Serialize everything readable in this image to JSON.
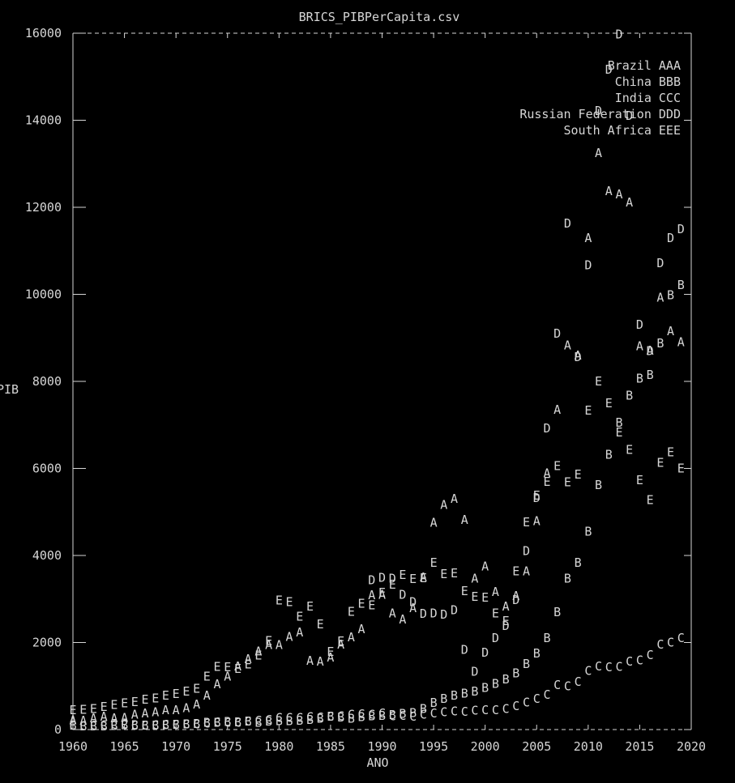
{
  "chart_data": {
    "type": "line",
    "title": "BRICS_PIBPerCapita.csv",
    "xlabel": "ANO",
    "ylabel": "PIB",
    "xlim": [
      1960,
      2020
    ],
    "ylim": [
      0,
      16000
    ],
    "x_ticks": [
      "1960",
      "1965",
      "1970",
      "1975",
      "1980",
      "1985",
      "1990",
      "1995",
      "2000",
      "2005",
      "2010",
      "2015",
      "2020"
    ],
    "y_ticks": [
      "0",
      "2000",
      "4000",
      "6000",
      "8000",
      "10000",
      "12000",
      "14000",
      "16000"
    ],
    "legend_position": "top-right",
    "series": [
      {
        "name": "Brazil",
        "marker": "A",
        "x": [
          1960,
          1961,
          1962,
          1963,
          1964,
          1965,
          1966,
          1967,
          1968,
          1969,
          1970,
          1971,
          1972,
          1973,
          1974,
          1975,
          1976,
          1977,
          1978,
          1979,
          1980,
          1981,
          1982,
          1983,
          1984,
          1985,
          1986,
          1987,
          1988,
          1989,
          1990,
          1991,
          1992,
          1993,
          1994,
          1995,
          1996,
          1997,
          1998,
          1999,
          2000,
          2001,
          2002,
          2003,
          2004,
          2005,
          2006,
          2007,
          2008,
          2009,
          2010,
          2011,
          2012,
          2013,
          2014,
          2015,
          2016,
          2017,
          2018,
          2019
        ],
        "values": [
          211,
          209,
          259,
          294,
          262,
          269,
          343,
          371,
          404,
          443,
          442,
          496,
          573,
          780,
          1046,
          1218,
          1455,
          1619,
          1800,
          1940,
          1947,
          2130,
          2230,
          1578,
          1560,
          1657,
          1950,
          2118,
          2306,
          3090,
          3100,
          2670,
          2530,
          2790,
          3500,
          4750,
          5160,
          5300,
          4820,
          3470,
          3750,
          3160,
          2830,
          3070,
          3640,
          4790,
          5890,
          7350,
          8830,
          8600,
          11290,
          13250,
          12370,
          12300,
          12110,
          8810,
          8710,
          9930,
          9150,
          8900
        ]
      },
      {
        "name": "China",
        "marker": "B",
        "x": [
          1960,
          1961,
          1962,
          1963,
          1964,
          1965,
          1966,
          1967,
          1968,
          1969,
          1970,
          1971,
          1972,
          1973,
          1974,
          1975,
          1976,
          1977,
          1978,
          1979,
          1980,
          1981,
          1982,
          1983,
          1984,
          1985,
          1986,
          1987,
          1988,
          1989,
          1990,
          1991,
          1992,
          1993,
          1994,
          1995,
          1996,
          1997,
          1998,
          1999,
          2000,
          2001,
          2002,
          2003,
          2004,
          2005,
          2006,
          2007,
          2008,
          2009,
          2010,
          2011,
          2012,
          2013,
          2014,
          2015,
          2016,
          2017,
          2018,
          2019
        ],
        "values": [
          90,
          76,
          70,
          74,
          85,
          98,
          104,
          97,
          91,
          100,
          113,
          118,
          132,
          157,
          160,
          178,
          165,
          185,
          156,
          184,
          195,
          197,
          203,
          225,
          251,
          294,
          282,
          252,
          284,
          311,
          318,
          333,
          367,
          377,
          473,
          610,
          709,
          782,
          829,
          873,
          959,
          1053,
          1149,
          1289,
          1509,
          1753,
          2099,
          2694,
          3468,
          3832,
          4550,
          5618,
          6317,
          7051,
          7679,
          8067,
          8148,
          8879,
          9977,
          10217
        ]
      },
      {
        "name": "India",
        "marker": "C",
        "x": [
          1960,
          1961,
          1962,
          1963,
          1964,
          1965,
          1966,
          1967,
          1968,
          1969,
          1970,
          1971,
          1972,
          1973,
          1974,
          1975,
          1976,
          1977,
          1978,
          1979,
          1980,
          1981,
          1982,
          1983,
          1984,
          1985,
          1986,
          1987,
          1988,
          1989,
          1990,
          1991,
          1992,
          1993,
          1994,
          1995,
          1996,
          1997,
          1998,
          1999,
          2000,
          2001,
          2002,
          2003,
          2004,
          2005,
          2006,
          2007,
          2008,
          2009,
          2010,
          2011,
          2012,
          2013,
          2014,
          2015,
          2016,
          2017,
          2018,
          2019
        ],
        "values": [
          82,
          85,
          89,
          101,
          115,
          119,
          90,
          96,
          99,
          107,
          112,
          118,
          122,
          143,
          163,
          158,
          161,
          186,
          205,
          224,
          266,
          270,
          274,
          291,
          276,
          296,
          310,
          340,
          354,
          346,
          368,
          303,
          316,
          301,
          346,
          373,
          399,
          415,
          413,
          441,
          443,
          451,
          470,
          543,
          624,
          710,
          802,
          1023,
          993,
          1096,
          1350,
          1450,
          1430,
          1440,
          1560,
          1590,
          1710,
          1950,
          2000,
          2100
        ]
      },
      {
        "name": "Russian Federation",
        "marker": "D",
        "x": [
          1989,
          1990,
          1991,
          1992,
          1993,
          1994,
          1995,
          1996,
          1997,
          1998,
          1999,
          2000,
          2001,
          2002,
          2003,
          2004,
          2005,
          2006,
          2007,
          2008,
          2009,
          2010,
          2011,
          2012,
          2013,
          2014,
          2015,
          2016,
          2017,
          2018,
          2019
        ],
        "values": [
          3430,
          3490,
          3470,
          3100,
          2930,
          2660,
          2670,
          2640,
          2740,
          1830,
          1330,
          1770,
          2100,
          2380,
          2980,
          4100,
          5320,
          6920,
          9100,
          11630,
          8560,
          10670,
          14210,
          15160,
          15970,
          14100,
          9300,
          8700,
          10720,
          11290,
          11500
        ]
      },
      {
        "name": "South Africa",
        "marker": "E",
        "x": [
          1960,
          1961,
          1962,
          1963,
          1964,
          1965,
          1966,
          1967,
          1968,
          1969,
          1970,
          1971,
          1972,
          1973,
          1974,
          1975,
          1976,
          1977,
          1978,
          1979,
          1980,
          1981,
          1982,
          1983,
          1984,
          1985,
          1986,
          1987,
          1988,
          1989,
          1990,
          1991,
          1992,
          1993,
          1994,
          1995,
          1996,
          1997,
          1998,
          1999,
          2000,
          2001,
          2002,
          2003,
          2004,
          2005,
          2006,
          2007,
          2008,
          2009,
          2010,
          2011,
          2012,
          2013,
          2014,
          2015,
          2016,
          2017,
          2018,
          2019
        ],
        "values": [
          443,
          458,
          476,
          522,
          567,
          602,
          635,
          690,
          714,
          779,
          814,
          872,
          937,
          1214,
          1442,
          1432,
          1400,
          1500,
          1700,
          2040,
          2970,
          2930,
          2600,
          2830,
          2420,
          1790,
          2030,
          2710,
          2890,
          2860,
          3140,
          3330,
          3550,
          3460,
          3480,
          3830,
          3570,
          3590,
          3180,
          3050,
          3030,
          2670,
          2490,
          3640,
          4760,
          5380,
          5690,
          6060,
          5680,
          5860,
          7330,
          8000,
          7500,
          6830,
          6430,
          5730,
          5270,
          6130,
          6370,
          6000
        ]
      }
    ]
  }
}
